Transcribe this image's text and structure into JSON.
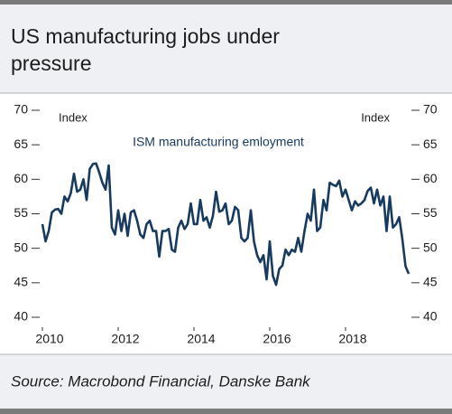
{
  "chart_data": {
    "type": "line",
    "title": "US manufacturing jobs under pressure",
    "source": "Source: Macrobond Financial, Danske Bank",
    "y_label": "Index",
    "y2_label": "Index",
    "xlim": [
      2009.9,
      2019.9
    ],
    "xticks": [
      2010,
      2012,
      2014,
      2016,
      2018
    ],
    "ylim": [
      40,
      70
    ],
    "yticks": [
      40,
      45,
      50,
      55,
      60,
      65,
      70
    ],
    "y2lim": [
      40,
      70
    ],
    "y2ticks": [
      40,
      45,
      50,
      55,
      60,
      65,
      70
    ],
    "x": [
      2010.0,
      2010.083,
      2010.167,
      2010.25,
      2010.333,
      2010.417,
      2010.5,
      2010.583,
      2010.667,
      2010.75,
      2010.833,
      2010.917,
      2011.0,
      2011.083,
      2011.167,
      2011.25,
      2011.333,
      2011.417,
      2011.5,
      2011.583,
      2011.667,
      2011.75,
      2011.833,
      2011.917,
      2012.0,
      2012.083,
      2012.167,
      2012.25,
      2012.333,
      2012.417,
      2012.5,
      2012.583,
      2012.667,
      2012.75,
      2012.833,
      2012.917,
      2013.0,
      2013.083,
      2013.167,
      2013.25,
      2013.333,
      2013.417,
      2013.5,
      2013.583,
      2013.667,
      2013.75,
      2013.833,
      2013.917,
      2014.0,
      2014.083,
      2014.167,
      2014.25,
      2014.333,
      2014.417,
      2014.5,
      2014.583,
      2014.667,
      2014.75,
      2014.833,
      2014.917,
      2015.0,
      2015.083,
      2015.167,
      2015.25,
      2015.333,
      2015.417,
      2015.5,
      2015.583,
      2015.667,
      2015.75,
      2015.833,
      2015.917,
      2016.0,
      2016.083,
      2016.167,
      2016.25,
      2016.333,
      2016.417,
      2016.5,
      2016.583,
      2016.667,
      2016.75,
      2016.833,
      2016.917,
      2017.0,
      2017.083,
      2017.167,
      2017.25,
      2017.333,
      2017.417,
      2017.5,
      2017.583,
      2017.667,
      2017.75,
      2017.833,
      2017.917,
      2018.0,
      2018.083,
      2018.167,
      2018.25,
      2018.333,
      2018.417,
      2018.5,
      2018.583,
      2018.667,
      2018.75,
      2018.833,
      2018.917,
      2019.0,
      2019.083,
      2019.167,
      2019.25,
      2019.333,
      2019.417,
      2019.5,
      2019.583,
      2019.667
    ],
    "series": [
      {
        "name": "ISM manufacturing emloyment",
        "color": "#173a5e",
        "values": [
          53.5,
          51,
          52.5,
          55.2,
          55.6,
          55.7,
          55,
          57.5,
          56.8,
          58,
          60.8,
          58.2,
          58.5,
          60,
          57,
          61.5,
          62.2,
          62.3,
          61,
          59.5,
          58.5,
          62,
          53,
          52,
          55.5,
          52.5,
          55,
          51.8,
          55.2,
          55.5,
          54,
          52,
          51.5,
          53.5,
          54,
          52.5,
          52.5,
          48.8,
          52.5,
          52.5,
          52.8,
          49.8,
          49.5,
          53,
          54,
          52.8,
          53.5,
          56.5,
          53.5,
          53.5,
          57,
          54,
          54.5,
          53,
          54.7,
          58.2,
          55.3,
          55.5,
          56.5,
          53.5,
          54,
          56,
          55.5,
          51.5,
          51,
          51.5,
          55.5,
          51,
          49,
          48,
          49,
          45.5,
          51,
          46,
          44.7,
          47,
          47.5,
          49.8,
          49,
          49.8,
          49.5,
          51.5,
          49.5,
          52.5,
          55,
          54,
          58.5,
          52.5,
          53,
          57,
          55.5,
          59.5,
          59.2,
          59,
          59.8,
          57.5,
          58.5,
          57,
          55.5,
          56.8,
          56.2,
          56.5,
          57,
          58.3,
          58.8,
          56.5,
          58.5,
          56.2,
          57.5,
          52.5,
          57.5,
          53,
          53.5,
          54.5,
          51.3,
          47.4,
          46.3
        ]
      }
    ]
  }
}
